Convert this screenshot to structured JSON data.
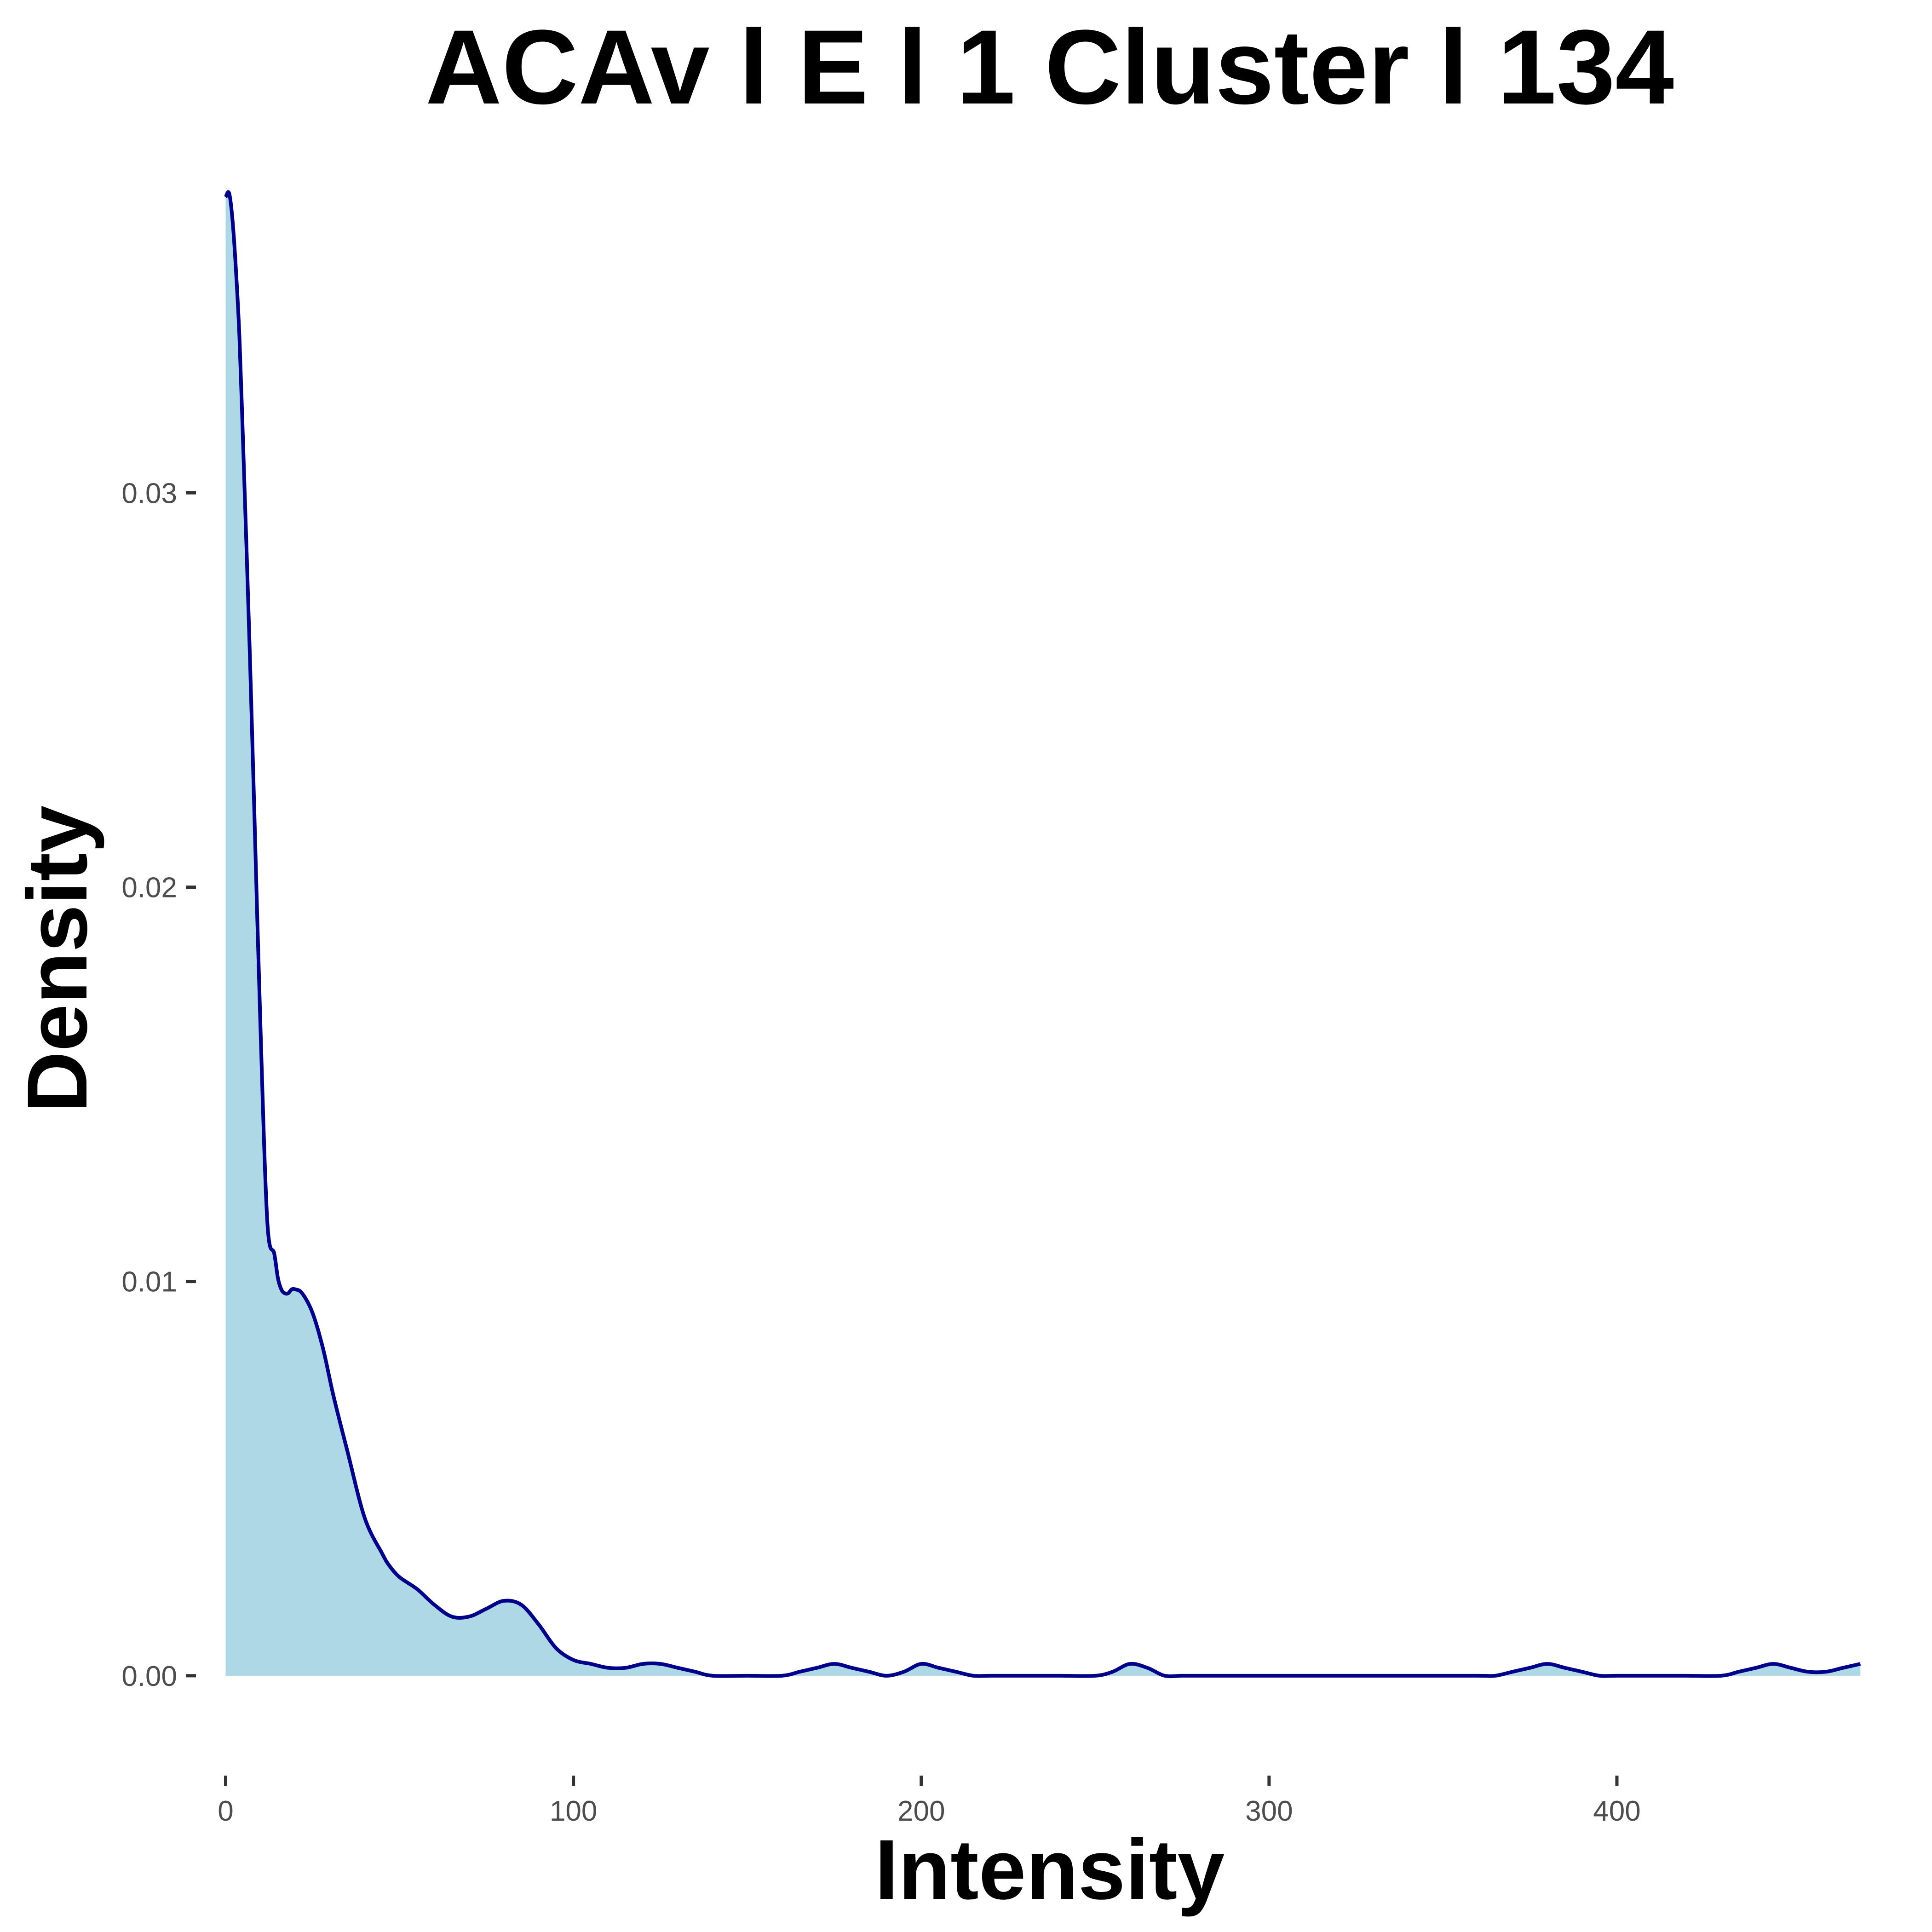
{
  "chart_data": {
    "type": "area",
    "title": "ACAv l E l 1 Cluster l  134",
    "xlabel": "Intensity",
    "ylabel": "Density",
    "xlim": [
      -8,
      482
    ],
    "ylim": [
      -0.0016,
      0.0376
    ],
    "x_ticks": [
      0,
      100,
      200,
      300,
      400
    ],
    "x_tick_labels": [
      "0",
      "100",
      "200",
      "300",
      "400"
    ],
    "y_ticks": [
      0,
      0.01,
      0.02,
      0.03
    ],
    "y_tick_labels": [
      "0.00",
      "0.01",
      "0.02",
      "0.03"
    ],
    "grid": false,
    "legend": "none",
    "fill_color": "#add8e6",
    "line_color": "#00008b",
    "series": [
      {
        "x": [
          0,
          1,
          2,
          3,
          4,
          5,
          6,
          7,
          8,
          10,
          12,
          14,
          15,
          16,
          17,
          18,
          19,
          20,
          22,
          25,
          28,
          31,
          35,
          40,
          45,
          47,
          50,
          55,
          60,
          65,
          70,
          75,
          80,
          85,
          90,
          95,
          100,
          105,
          110,
          115,
          120,
          125,
          130,
          135,
          140,
          150,
          160,
          165,
          170,
          175,
          180,
          185,
          190,
          195,
          200,
          205,
          210,
          215,
          220,
          230,
          240,
          250,
          255,
          260,
          265,
          270,
          275,
          280,
          300,
          320,
          340,
          360,
          365,
          370,
          375,
          380,
          385,
          390,
          395,
          400,
          410,
          420,
          430,
          435,
          440,
          445,
          450,
          455,
          460,
          465,
          470
        ],
        "y": [
          0.0375,
          0.0376,
          0.0369,
          0.0356,
          0.0339,
          0.0313,
          0.0286,
          0.0258,
          0.0227,
          0.0165,
          0.0115,
          0.0107,
          0.0101,
          0.0098,
          0.0097,
          0.0097,
          0.0098,
          0.0098,
          0.0097,
          0.0092,
          0.0083,
          0.0071,
          0.0057,
          0.004,
          0.0031,
          0.0028,
          0.0025,
          0.0022,
          0.0018,
          0.0015,
          0.0015,
          0.0017,
          0.0019,
          0.0018,
          0.0013,
          0.0007,
          0.0004,
          0.0003,
          0.0002,
          0.0002,
          0.0003,
          0.0003,
          0.0002,
          0.0001,
          0.0,
          0.0,
          0.0,
          0.0001,
          0.0002,
          0.0003,
          0.0002,
          0.0001,
          0.0,
          0.0001,
          0.0003,
          0.0002,
          0.0001,
          0.0,
          0.0,
          0.0,
          0.0,
          0.0,
          0.0001,
          0.0003,
          0.0002,
          0.0,
          0.0,
          0.0,
          0.0,
          0.0,
          0.0,
          0.0,
          0.0,
          0.0001,
          0.0002,
          0.0003,
          0.0002,
          0.0001,
          0.0,
          0.0,
          0.0,
          0.0,
          0.0,
          0.0001,
          0.0002,
          0.0003,
          0.0002,
          0.0001,
          0.0001,
          0.0002,
          0.0003
        ]
      }
    ]
  }
}
